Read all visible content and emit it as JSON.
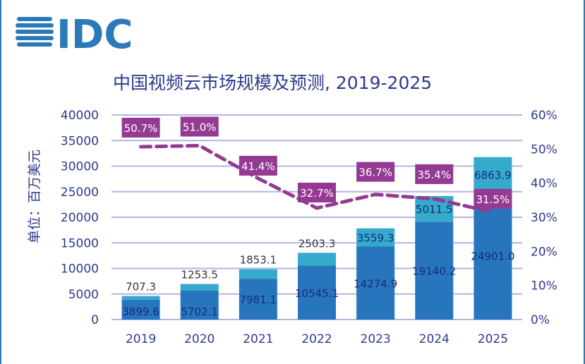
{
  "logo": "IDC",
  "chart_data": {
    "type": "bar",
    "title": "中国视频云市场规模及预测, 2019-2025",
    "ylabel": "单位：百万美元",
    "categories": [
      "2019",
      "2020",
      "2021",
      "2022",
      "2023",
      "2024",
      "2025"
    ],
    "ylim": [
      0,
      40000
    ],
    "yticks": [
      "0",
      "5000",
      "10000",
      "15000",
      "20000",
      "25000",
      "30000",
      "35000",
      "40000"
    ],
    "y2lim": [
      0,
      0.6
    ],
    "y2ticks": [
      "0%",
      "10%",
      "20%",
      "30%",
      "40%",
      "50%",
      "60%"
    ],
    "series": [
      {
        "type": "bar",
        "stack": true,
        "color": "#2776bd",
        "values": [
          3899.6,
          5702.1,
          7981.1,
          10545.1,
          14274.9,
          19140.2,
          24901.0
        ],
        "labels": [
          "3899.6",
          "5702.1",
          "7981.1",
          "10545.1",
          "14274.9",
          "19140.2",
          "24901.0"
        ]
      },
      {
        "type": "bar",
        "stack": true,
        "color": "#35aacb",
        "values": [
          707.3,
          1253.5,
          1853.1,
          2503.3,
          3559.3,
          5011.5,
          6863.9
        ],
        "labels": [
          "707.3",
          "1253.5",
          "1853.1",
          "2503.3",
          "3559.3",
          "5011.5",
          "6863.9"
        ]
      },
      {
        "type": "line",
        "axis": "right",
        "style": "dashed",
        "color": "#953a92",
        "values": [
          0.507,
          0.51,
          0.414,
          0.327,
          0.367,
          0.354,
          0.315
        ],
        "labels": [
          "50.7%",
          "51.0%",
          "41.4%",
          "32.7%",
          "36.7%",
          "35.4%",
          "31.5%"
        ]
      }
    ],
    "grid": true
  }
}
